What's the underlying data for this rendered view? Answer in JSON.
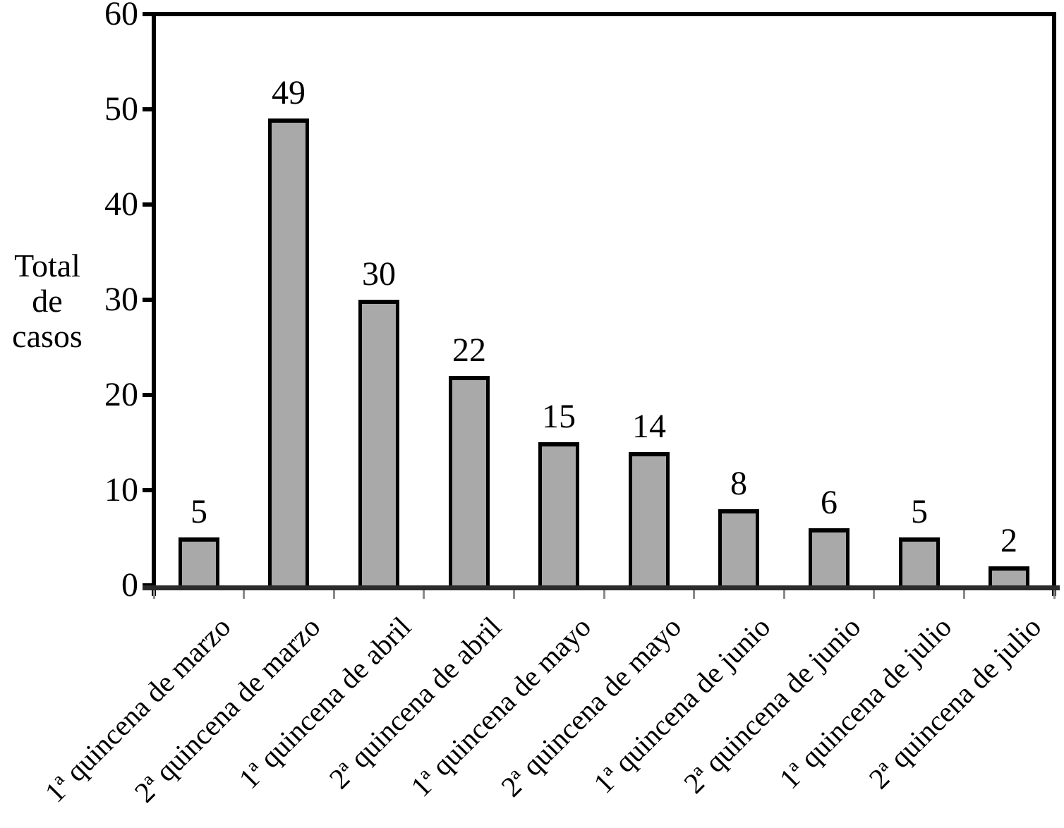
{
  "chart_data": {
    "type": "bar",
    "title": "",
    "xlabel": "",
    "ylabel": "Total\nde\ncasos",
    "categories": [
      "1ª quincena de marzo",
      "2ª quincena de marzo",
      "1ª quincena de abril",
      "2ª quincena de abril",
      "1ª quincena de mayo",
      "2ª quincena de mayo",
      "1ª quincena de junio",
      "2ª quincena de junio",
      "1ª quincena de julio",
      "2ª quincena de julio"
    ],
    "values": [
      5,
      49,
      30,
      22,
      15,
      14,
      8,
      6,
      5,
      2
    ],
    "yticks": [
      0,
      10,
      20,
      30,
      40,
      50,
      60
    ],
    "ylim": [
      0,
      60
    ],
    "grid": false,
    "legend_position": "none",
    "data_labels_shown": true,
    "bar_fill_color": "#a9a9a9",
    "bar_border_color": "#000000",
    "axis_line_color": "#2b2b2b",
    "tick_color": "#8a8a8a"
  }
}
